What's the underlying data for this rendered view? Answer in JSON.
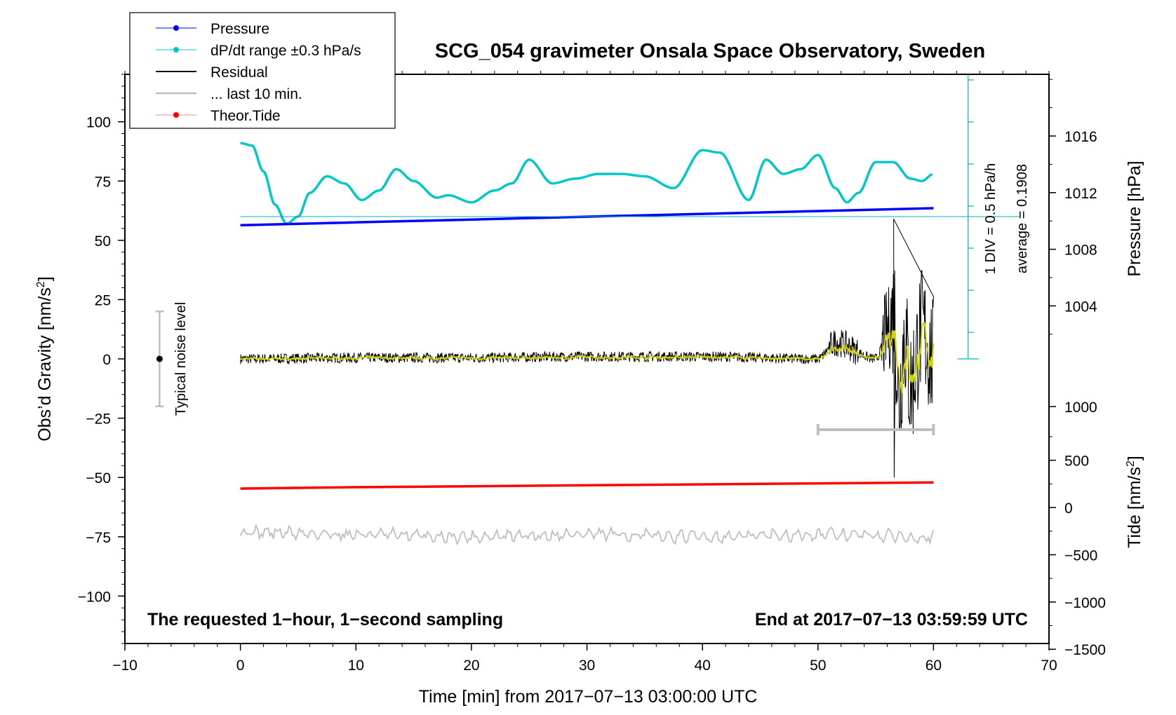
{
  "chart_data": {
    "type": "line",
    "title": "SCG_054 gravimeter Onsala Space Observatory, Sweden",
    "xlabel": "Time [min] from 2017−07−13 03:00:00 UTC",
    "ylabel_left": "Obs’d Gravity [nm/s",
    "ylabel_left_sup": "2",
    "ylabel_left_end": "]",
    "ylabel_right_pressure": "Pressure [hPa]",
    "ylabel_right_tide": "Tide [nm/s",
    "ylabel_right_tide_sup": "2",
    "ylabel_right_tide_end": "]",
    "xlim": [
      -10,
      70
    ],
    "ylim": [
      -120,
      120
    ],
    "x_ticks": [
      "−10",
      "0",
      "10",
      "20",
      "30",
      "40",
      "50",
      "60",
      "70"
    ],
    "y_ticks": [
      "100",
      "75",
      "50",
      "25",
      "0",
      "−25",
      "−50",
      "−75",
      "−100"
    ],
    "pressure_ticks": [
      "1016",
      "1012",
      "1008",
      "1004",
      "1000"
    ],
    "tide_ticks": [
      "500",
      "0",
      "−500",
      "−1000",
      "−1500"
    ],
    "legend": [
      {
        "label": "Pressure",
        "color": "#0000ff"
      },
      {
        "label": "dP/dt range ±0.3 hPa/s",
        "color": "#00c8c8"
      },
      {
        "label": "Residual",
        "color": "#000000"
      },
      {
        "label": "... last 10 min.",
        "color": "#bebebe"
      },
      {
        "label": "Theor.Tide",
        "color": "#ff0000"
      }
    ],
    "legend_placement": "top-left",
    "annotations": {
      "noise": "Typical noise level",
      "bottom_left": "The requested 1−hour, 1−second sampling",
      "bottom_right": "End at 2017−07−13 03:59:59 UTC",
      "div": "1 DIV = 0.5 hPa/h",
      "average": "average = 0.1908"
    },
    "series": [
      {
        "name": "Pressure",
        "color": "#0000ff",
        "unit": "hPa",
        "x": [
          0,
          10,
          20,
          30,
          40,
          50,
          60
        ],
        "values": [
          1009.7,
          1009.9,
          1010.1,
          1010.3,
          1010.5,
          1010.7,
          1010.9
        ]
      },
      {
        "name": "dP/dt range ±0.3 hPa/s",
        "color": "#00c8c8",
        "unit": "nm/s²",
        "x": [
          0,
          1,
          2,
          3,
          4,
          5,
          6,
          7.5,
          9,
          10.5,
          12,
          13.5,
          15,
          17,
          18,
          20,
          22,
          23.5,
          25,
          27,
          29,
          31,
          33,
          35,
          37.5,
          40,
          41.5,
          44,
          45.5,
          47,
          48.5,
          50,
          51.5,
          52.5,
          53.5,
          55,
          56.5,
          58,
          59,
          60
        ],
        "values": [
          91,
          90,
          79,
          65,
          57,
          60,
          70,
          77,
          74,
          67,
          71,
          80,
          75,
          68,
          69,
          66,
          71,
          74,
          84,
          74,
          76,
          78,
          78,
          77,
          72,
          88,
          87,
          67,
          84,
          78,
          80,
          86,
          72,
          66,
          70,
          83,
          83,
          76,
          75,
          78
        ]
      },
      {
        "name": "Residual",
        "color": "#000000",
        "unit": "nm/s²",
        "x": [
          0,
          10,
          20,
          30,
          40,
          50,
          51.5,
          55,
          56.2,
          56.6,
          57,
          57.5,
          58,
          59,
          60
        ],
        "values": [
          0,
          0.5,
          0.5,
          1,
          1,
          0,
          7,
          0,
          38,
          59,
          -50,
          30,
          -33,
          33,
          -2
        ]
      },
      {
        "name": "... last 10 min.",
        "color": "#bebebe",
        "unit": "nm/s²",
        "x": [
          0,
          10,
          20,
          30,
          40,
          50,
          60
        ],
        "values": [
          -73,
          -74,
          -75,
          -74,
          -75,
          -74,
          -75
        ]
      },
      {
        "name": "Theor.Tide",
        "color": "#ff0000",
        "unit": "nm/s²",
        "x": [
          0,
          10,
          20,
          30,
          40,
          50,
          60
        ],
        "values": [
          200,
          215,
          225,
          235,
          245,
          255,
          265
        ]
      }
    ],
    "last10_bar": [
      50,
      60
    ],
    "noise_bar": {
      "x": -7,
      "range": [
        -20,
        20
      ]
    }
  }
}
